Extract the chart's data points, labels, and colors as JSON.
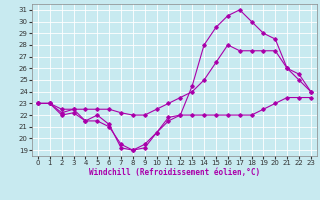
{
  "xlabel": "Windchill (Refroidissement éolien,°C)",
  "bg_color": "#c8eaf0",
  "line_color": "#aa00aa",
  "grid_color": "#ffffff",
  "xlim": [
    -0.5,
    23.5
  ],
  "ylim": [
    18.5,
    31.5
  ],
  "xticks": [
    0,
    1,
    2,
    3,
    4,
    5,
    6,
    7,
    8,
    9,
    10,
    11,
    12,
    13,
    14,
    15,
    16,
    17,
    18,
    19,
    20,
    21,
    22,
    23
  ],
  "yticks": [
    19,
    20,
    21,
    22,
    23,
    24,
    25,
    26,
    27,
    28,
    29,
    30,
    31
  ],
  "series1_x": [
    0,
    1,
    2,
    3,
    4,
    5,
    6,
    7,
    8,
    9,
    10,
    11,
    12,
    13,
    14,
    15,
    16,
    17,
    18,
    19,
    20,
    21,
    22,
    23
  ],
  "series1_y": [
    23.0,
    23.0,
    22.0,
    22.2,
    21.5,
    22.0,
    21.2,
    19.2,
    19.0,
    19.2,
    20.5,
    21.8,
    22.0,
    22.0,
    22.0,
    22.0,
    22.0,
    22.0,
    22.0,
    22.5,
    23.0,
    23.5,
    23.5,
    23.5
  ],
  "series2_x": [
    0,
    1,
    2,
    3,
    4,
    5,
    6,
    7,
    8,
    9,
    10,
    11,
    12,
    13,
    14,
    15,
    16,
    17,
    18,
    19,
    20,
    21,
    22,
    23
  ],
  "series2_y": [
    23.0,
    23.0,
    22.2,
    22.5,
    22.5,
    22.5,
    22.5,
    22.2,
    22.0,
    22.0,
    22.5,
    23.0,
    23.5,
    24.0,
    25.0,
    26.5,
    28.0,
    27.5,
    27.5,
    27.5,
    27.5,
    26.0,
    25.0,
    24.0
  ],
  "series3_x": [
    0,
    1,
    2,
    3,
    4,
    5,
    6,
    7,
    8,
    9,
    10,
    11,
    12,
    13,
    14,
    15,
    16,
    17,
    18,
    19,
    20,
    21,
    22,
    23
  ],
  "series3_y": [
    23.0,
    23.0,
    22.5,
    22.5,
    21.5,
    21.5,
    21.0,
    19.5,
    19.0,
    19.5,
    20.5,
    21.5,
    22.0,
    24.5,
    28.0,
    29.5,
    30.5,
    31.0,
    30.0,
    29.0,
    28.5,
    26.0,
    25.5,
    24.0
  ],
  "xlabel_fontsize": 5.5,
  "tick_fontsize": 5,
  "lw": 0.8,
  "ms": 1.8
}
